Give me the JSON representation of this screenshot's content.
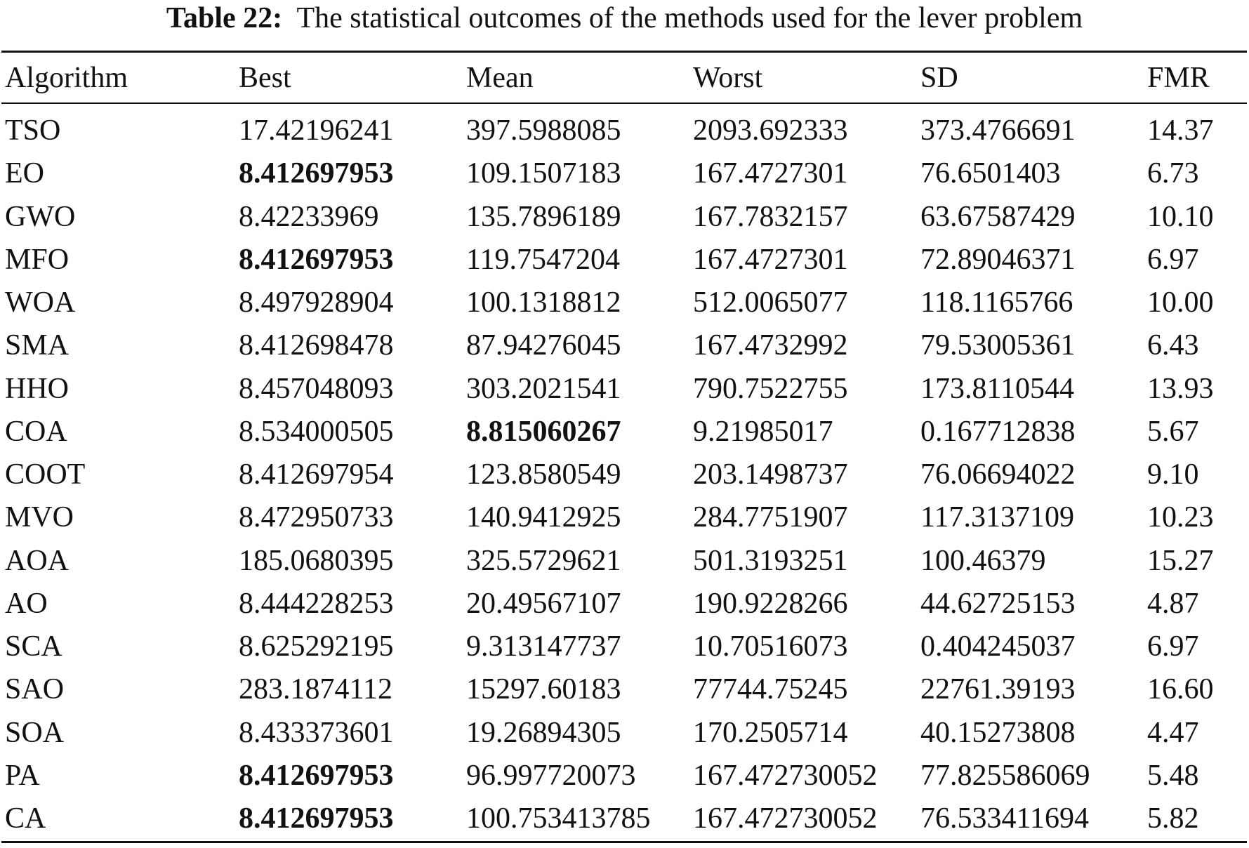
{
  "caption": {
    "label": "Table 22:",
    "text": "The statistical outcomes of the methods used for the lever problem"
  },
  "table": {
    "header": [
      "Algorithm",
      "Best",
      "Mean",
      "Worst",
      "SD",
      "FMR"
    ],
    "rows": [
      [
        "TSO",
        "17.42196241",
        "397.5988085",
        "2093.692333",
        "373.4766691",
        "14.37"
      ],
      [
        "EO",
        "8.412697953",
        "109.1507183",
        "167.4727301",
        "76.6501403",
        "6.73"
      ],
      [
        "GWO",
        "8.42233969",
        "135.7896189",
        "167.7832157",
        "63.67587429",
        "10.10"
      ],
      [
        "MFO",
        "8.412697953",
        "119.7547204",
        "167.4727301",
        "72.89046371",
        "6.97"
      ],
      [
        "WOA",
        "8.497928904",
        "100.1318812",
        "512.0065077",
        "118.1165766",
        "10.00"
      ],
      [
        "SMA",
        "8.412698478",
        "87.94276045",
        "167.4732992",
        "79.53005361",
        "6.43"
      ],
      [
        "HHO",
        "8.457048093",
        "303.2021541",
        "790.7522755",
        "173.8110544",
        "13.93"
      ],
      [
        "COA",
        "8.534000505",
        "8.815060267",
        "9.21985017",
        "0.167712838",
        "5.67"
      ],
      [
        "COOT",
        "8.412697954",
        "123.8580549",
        "203.1498737",
        "76.06694022",
        "9.10"
      ],
      [
        "MVO",
        "8.472950733",
        "140.9412925",
        "284.7751907",
        "117.3137109",
        "10.23"
      ],
      [
        "AOA",
        "185.0680395",
        "325.5729621",
        "501.3193251",
        "100.46379",
        "15.27"
      ],
      [
        "AO",
        "8.444228253",
        "20.49567107",
        "190.9228266",
        "44.62725153",
        "4.87"
      ],
      [
        "SCA",
        "8.625292195",
        "9.313147737",
        "10.70516073",
        "0.404245037",
        "6.97"
      ],
      [
        "SAO",
        "283.1874112",
        "15297.60183",
        "77744.75245",
        "22761.39193",
        "16.60"
      ],
      [
        "SOA",
        "8.433373601",
        "19.26894305",
        "170.2505714",
        "40.15273808",
        "4.47"
      ],
      [
        "PA",
        "8.412697953",
        "96.997720073",
        "167.472730052",
        "77.825586069",
        "5.48"
      ],
      [
        "CA",
        "8.412697953",
        "100.753413785",
        "167.472730052",
        "76.533411694",
        "5.82"
      ]
    ],
    "bold": [
      [
        1,
        1
      ],
      [
        3,
        1
      ],
      [
        7,
        2
      ],
      [
        15,
        1
      ],
      [
        16,
        1
      ]
    ]
  }
}
